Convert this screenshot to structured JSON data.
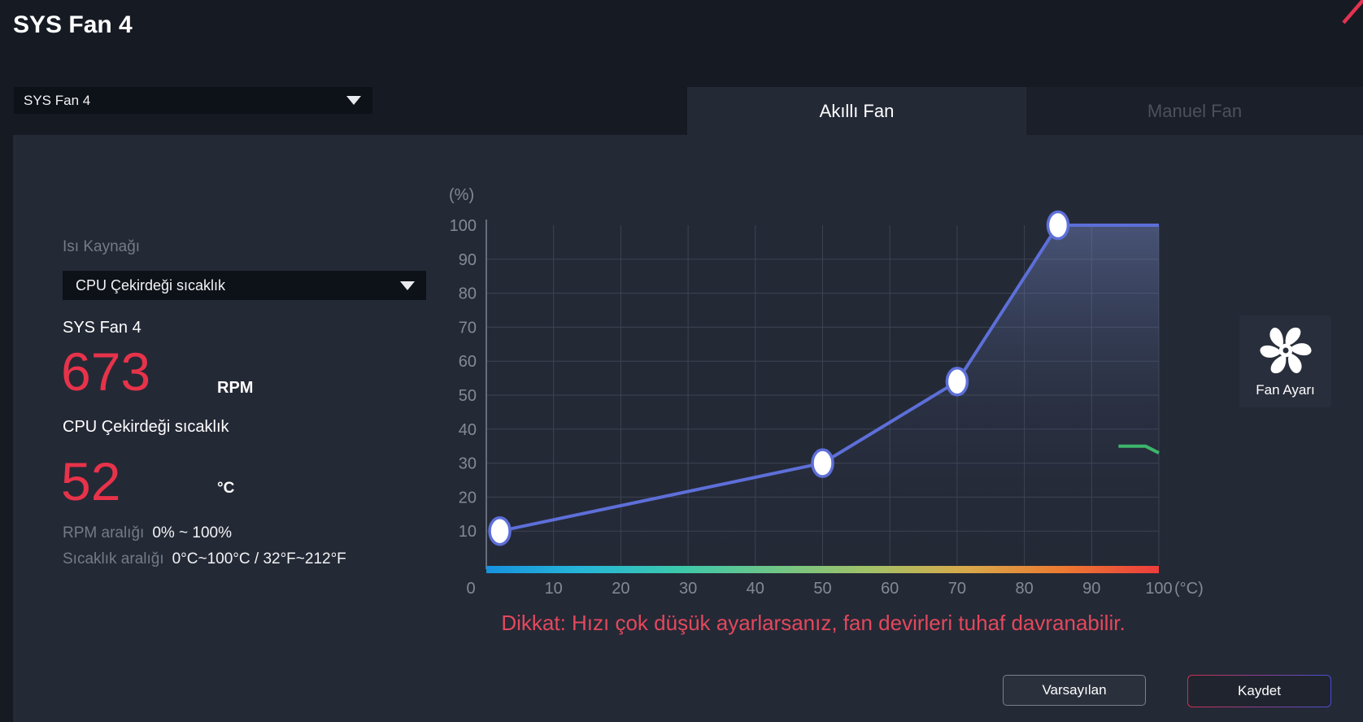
{
  "window": {
    "title": "SYS Fan 4"
  },
  "fan_selector": {
    "value": "SYS Fan 4"
  },
  "tabs": {
    "smart": {
      "label": "Akıllı Fan",
      "active": true
    },
    "manual": {
      "label": "Manuel Fan",
      "active": false
    }
  },
  "info": {
    "source_label": "Isı Kaynağı",
    "source_value": "CPU Çekirdeği sıcaklık",
    "fan_name": "SYS Fan 4",
    "rpm_value": "673",
    "rpm_unit": "RPM",
    "temp_source": "CPU Çekirdeği sıcaklık",
    "temp_value": "52",
    "temp_unit": "°C",
    "rpm_range_label": "RPM aralığı",
    "rpm_range_value": "0% ~ 100%",
    "temp_range_label": "Sıcaklık aralığı",
    "temp_range_value": "0°C~100°C / 32°F~212°F"
  },
  "chart_data": {
    "type": "line",
    "title": "Fan speed (%) vs temperature (°C) curve",
    "xlabel": "(°C)",
    "ylabel": "(%)",
    "xlim": [
      0,
      100
    ],
    "ylim": [
      0,
      100
    ],
    "x_ticks": [
      0,
      10,
      20,
      30,
      40,
      50,
      60,
      70,
      80,
      90,
      100
    ],
    "y_ticks": [
      10,
      20,
      30,
      40,
      50,
      60,
      70,
      80,
      90,
      100
    ],
    "grid": true,
    "legend": "none",
    "series": [
      {
        "name": "fan-curve",
        "color": "#5d6fd8",
        "marker": "white-circle",
        "marker_stroke": "#5d6fd8",
        "points": [
          [
            2,
            10
          ],
          [
            50,
            30
          ],
          [
            70,
            54
          ],
          [
            85,
            100
          ],
          [
            100,
            100
          ]
        ],
        "markers_at": [
          [
            2,
            10
          ],
          [
            50,
            30
          ],
          [
            70,
            54
          ],
          [
            85,
            100
          ]
        ],
        "area_fill": true
      },
      {
        "name": "secondary-curve-segment",
        "color": "#3db56d",
        "points": [
          [
            94,
            35
          ],
          [
            98,
            35
          ],
          [
            100,
            33
          ]
        ]
      }
    ],
    "temperature_bar_gradient": [
      "#1792de",
      "#26b6d8",
      "#3cc8ab",
      "#6fc687",
      "#a3c167",
      "#d8a94a",
      "#ec7a31",
      "#ed3d3d"
    ],
    "colors": {
      "grid": "#3c4352",
      "axis": "#666d7c",
      "tick_text": "#848a95"
    }
  },
  "side_tile": {
    "label": "Fan Ayarı",
    "icon": "fan-icon"
  },
  "warning": "Dikkat: Hızı çok düşük ayarlarsanız, fan devirleri tuhaf davranabilir.",
  "footer": {
    "default_label": "Varsayılan",
    "save_label": "Kaydet"
  },
  "accent_colors": {
    "value_red": "#e7334a",
    "warning_red": "#e4485c",
    "curve_blue": "#5d6fd8",
    "close_red": "#e23350"
  }
}
